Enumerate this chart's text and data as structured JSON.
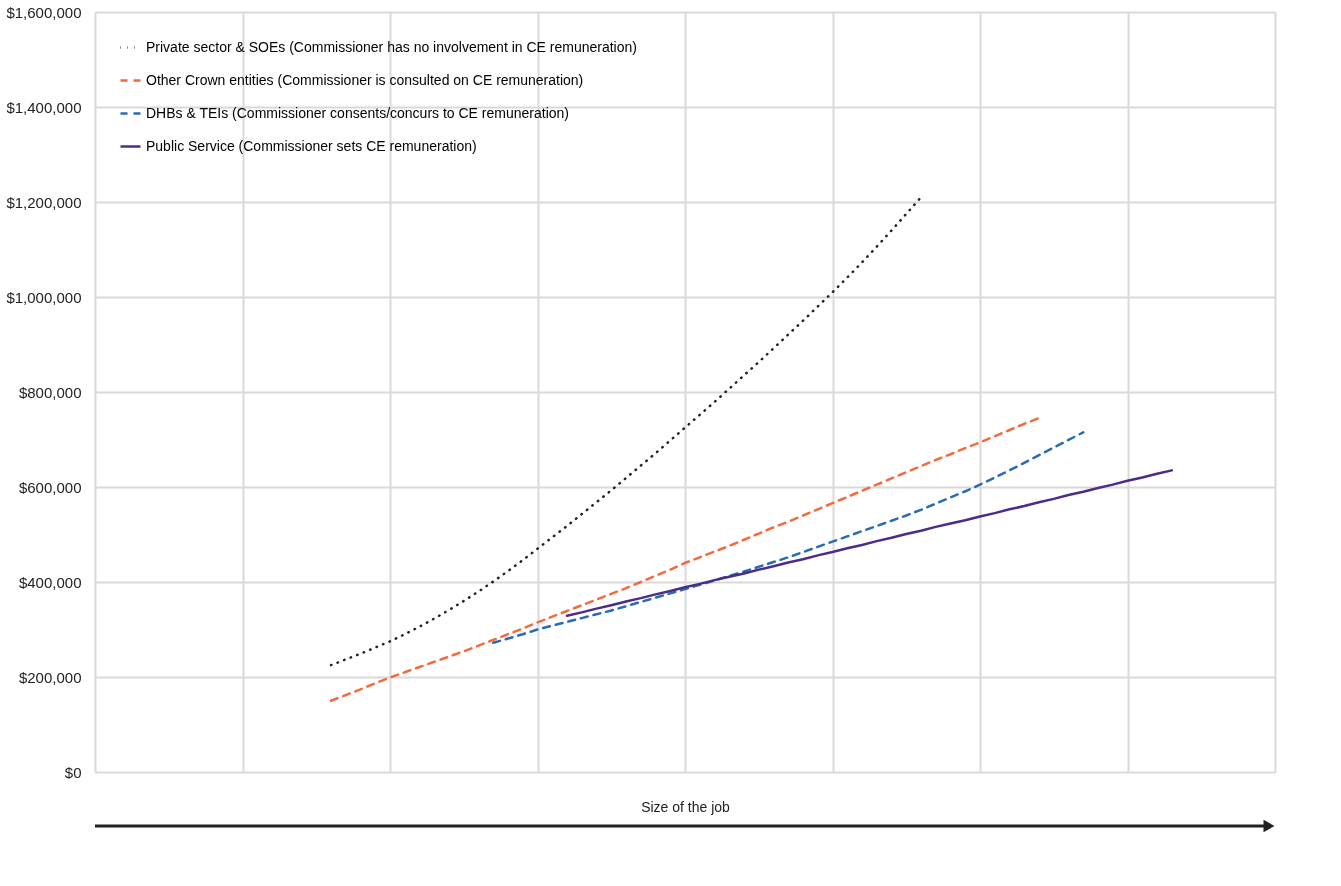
{
  "chart_data": {
    "type": "line",
    "xlabel": "Size of the job",
    "categories": [
      null,
      null,
      null,
      null,
      null,
      null,
      null,
      null,
      null,
      null,
      null,
      null,
      null,
      null,
      null,
      null,
      null,
      null,
      null,
      null,
      null,
      null,
      null,
      null,
      null,
      null,
      null,
      null,
      null,
      null,
      null,
      null,
      null,
      null,
      null,
      null,
      null,
      null,
      null,
      null,
      null,
      null,
      null,
      null,
      null,
      null,
      null,
      null,
      null,
      null,
      null,
      null,
      null,
      null,
      null,
      null,
      null,
      null,
      null,
      null,
      null,
      null,
      null,
      null,
      null,
      null,
      null,
      null,
      null,
      null,
      null,
      null,
      null,
      null,
      null,
      null,
      null,
      null,
      null,
      null,
      null
    ],
    "series": [
      {
        "name": "Private sector & SOEs (Commissioner has no involvement in CE remuneration)",
        "color": "#222222",
        "line_style": "dotted",
        "values": [
          null,
          null,
          null,
          null,
          null,
          null,
          null,
          null,
          null,
          null,
          null,
          null,
          null,
          null,
          null,
          null,
          225000,
          237000,
          249000,
          262000,
          275000,
          290000,
          306000,
          323000,
          341000,
          360000,
          380000,
          401000,
          423000,
          446000,
          470000,
          494000,
          518000,
          543000,
          568000,
          593000,
          619000,
          645000,
          671000,
          698000,
          725000,
          752000,
          779000,
          807000,
          835000,
          863000,
          892000,
          921000,
          950000,
          980000,
          1010000,
          1041000,
          1073000,
          1106000,
          1140000,
          1175000,
          1210000,
          null,
          null,
          null,
          null,
          null,
          null,
          null,
          null,
          null,
          null,
          null,
          null,
          null,
          null,
          null,
          null,
          null,
          null,
          null,
          null,
          null,
          null,
          null,
          null
        ]
      },
      {
        "name": "Other Crown entities (Commissioner is consulted on CE remuneration)",
        "color": "#f26a3d",
        "line_style": "dashed",
        "values": [
          null,
          null,
          null,
          null,
          null,
          null,
          null,
          null,
          null,
          null,
          null,
          null,
          null,
          null,
          null,
          null,
          150000,
          162000,
          174000,
          187000,
          199000,
          210000,
          221000,
          232000,
          243000,
          254000,
          266000,
          278000,
          290000,
          302000,
          315000,
          327000,
          339000,
          351000,
          363000,
          375000,
          387000,
          400000,
          413000,
          426000,
          440000,
          452000,
          464000,
          476000,
          489000,
          502000,
          515000,
          527000,
          540000,
          553000,
          566000,
          579000,
          592000,
          605000,
          618000,
          631000,
          644000,
          657000,
          669000,
          682000,
          694000,
          707000,
          720000,
          733000,
          745000,
          null,
          null,
          null,
          null,
          null,
          null,
          null,
          null,
          null,
          null,
          null,
          null,
          null,
          null,
          null,
          null
        ]
      },
      {
        "name": "DHBs & TEIs (Commissioner consents/concurs to CE remuneration)",
        "color": "#2a6cb0",
        "line_style": "dashed",
        "values": [
          null,
          null,
          null,
          null,
          null,
          null,
          null,
          null,
          null,
          null,
          null,
          null,
          null,
          null,
          null,
          null,
          null,
          null,
          null,
          null,
          null,
          null,
          null,
          null,
          null,
          null,
          null,
          272000,
          281000,
          290000,
          300000,
          308000,
          316000,
          324000,
          332000,
          340000,
          349000,
          358000,
          367000,
          376000,
          385000,
          394000,
          403000,
          413000,
          422000,
          432000,
          442000,
          452000,
          463000,
          474000,
          485000,
          496000,
          507000,
          518000,
          529000,
          540000,
          552000,
          565000,
          578000,
          591000,
          605000,
          620000,
          635000,
          651000,
          667000,
          683000,
          699000,
          715000,
          null,
          null,
          null,
          null,
          null,
          null,
          null,
          null,
          null,
          null,
          null,
          null,
          null
        ]
      },
      {
        "name": "Public Service (Commissioner sets CE remuneration)",
        "color": "#4b2c8a",
        "line_style": "solid",
        "values": [
          null,
          null,
          null,
          null,
          null,
          null,
          null,
          null,
          null,
          null,
          null,
          null,
          null,
          null,
          null,
          null,
          null,
          null,
          null,
          null,
          null,
          null,
          null,
          null,
          null,
          null,
          null,
          null,
          null,
          null,
          null,
          null,
          329000,
          336000,
          344000,
          351000,
          359000,
          366000,
          374000,
          381000,
          389000,
          396000,
          404000,
          411000,
          418000,
          426000,
          433000,
          441000,
          448000,
          456000,
          463000,
          471000,
          478000,
          486000,
          493000,
          501000,
          508000,
          516000,
          523000,
          530000,
          538000,
          545000,
          553000,
          560000,
          568000,
          575000,
          583000,
          590000,
          598000,
          605000,
          613000,
          620000,
          628000,
          635000,
          null,
          null,
          null,
          null,
          null,
          null,
          null
        ]
      }
    ],
    "ylim": [
      0,
      1600000
    ],
    "yticks": [
      {
        "value": 0,
        "label": "$0"
      },
      {
        "value": 200000,
        "label": "$200,000"
      },
      {
        "value": 400000,
        "label": "$400,000"
      },
      {
        "value": 600000,
        "label": "$600,000"
      },
      {
        "value": 800000,
        "label": "$800,000"
      },
      {
        "value": 1000000,
        "label": "$1,000,000"
      },
      {
        "value": 1200000,
        "label": "$1,200,000"
      },
      {
        "value": 1400000,
        "label": "$1,400,000"
      },
      {
        "value": 1600000,
        "label": "$1,600,000"
      }
    ],
    "grid": true,
    "legend": "top left",
    "tick_labels": "y",
    "marker": "none"
  }
}
